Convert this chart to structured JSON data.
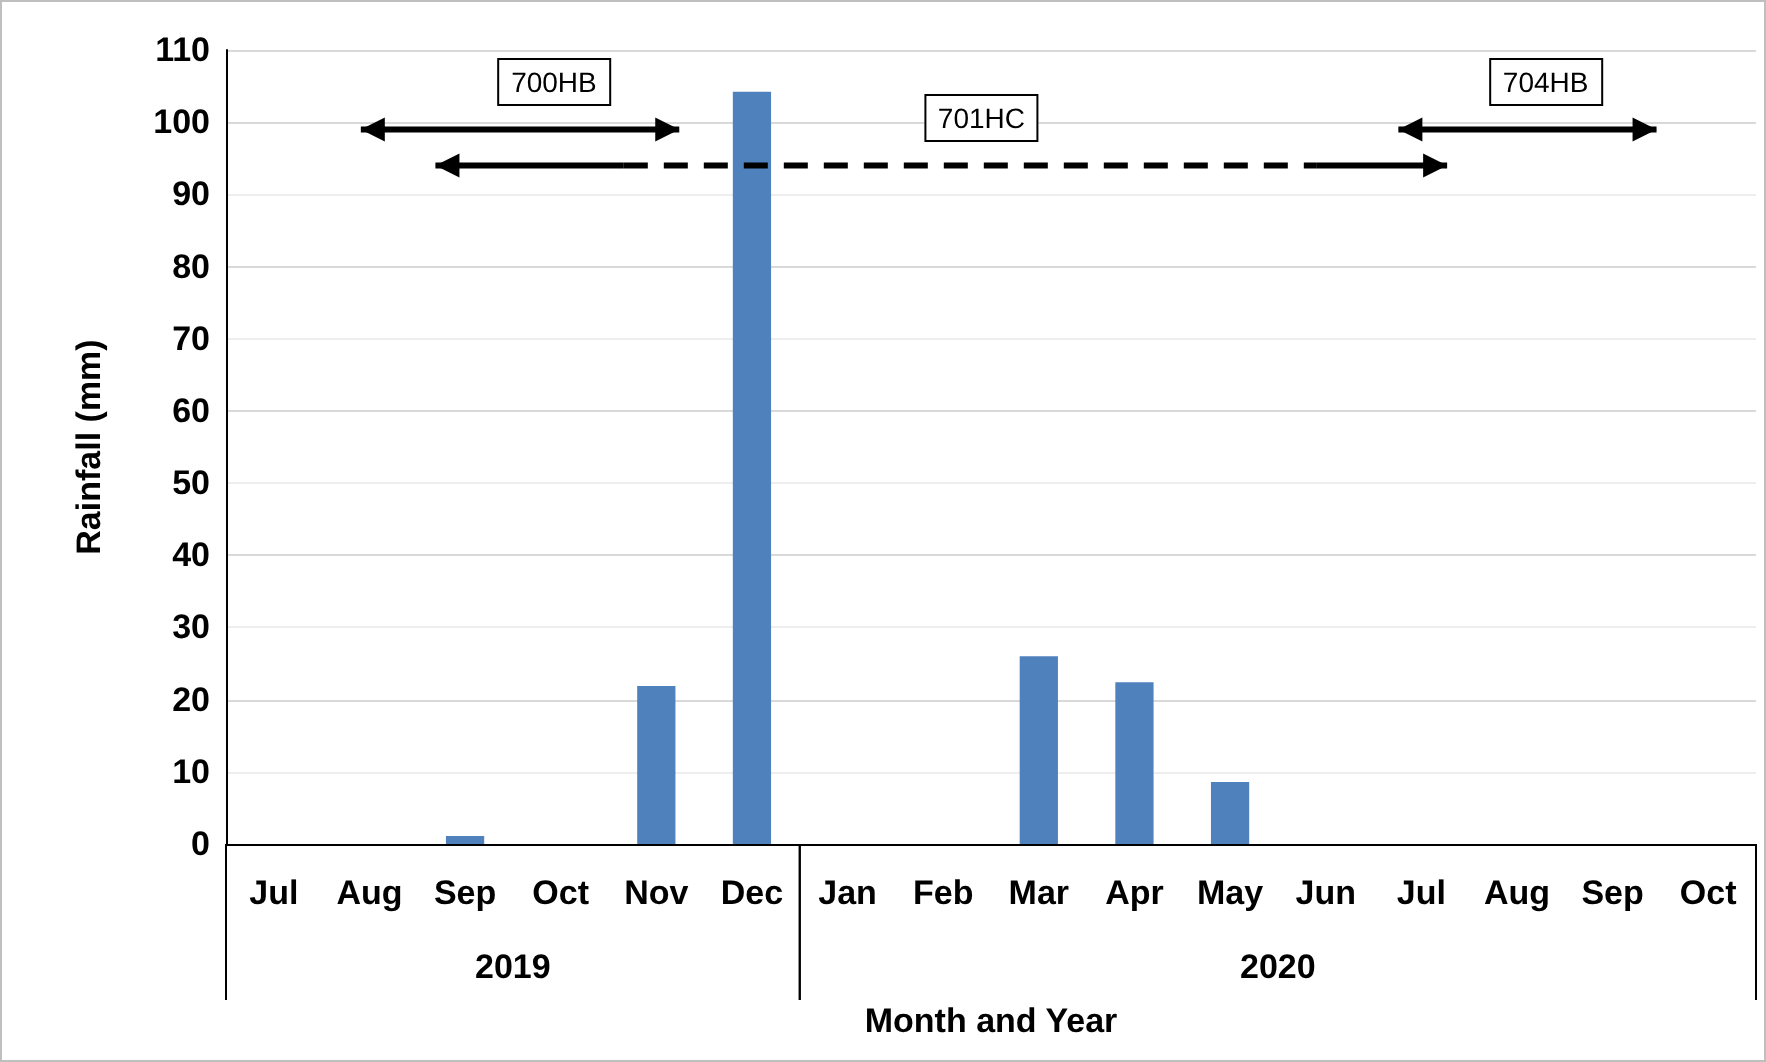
{
  "chart_data": {
    "type": "bar",
    "xlabel": "Month and Year",
    "ylabel": "Rainfall (mm)",
    "categories": [
      "Jul",
      "Aug",
      "Sep",
      "Oct",
      "Nov",
      "Dec",
      "Jan",
      "Feb",
      "Mar",
      "Apr",
      "May",
      "Jun",
      "Jul",
      "Aug",
      "Sep",
      "Oct"
    ],
    "values": [
      0,
      0,
      1.1,
      0,
      21.9,
      104.2,
      0,
      0,
      26,
      22.4,
      8.6,
      0,
      0,
      0,
      0,
      0
    ],
    "color": "#4f81bd",
    "ylim": [
      0,
      110
    ],
    "yticks": [
      0,
      10,
      20,
      30,
      40,
      50,
      60,
      70,
      80,
      90,
      100,
      110
    ],
    "grid": "y",
    "annotations": [
      "700HB",
      "701HC",
      "704HB",
      "2019",
      "2020"
    ]
  }
}
